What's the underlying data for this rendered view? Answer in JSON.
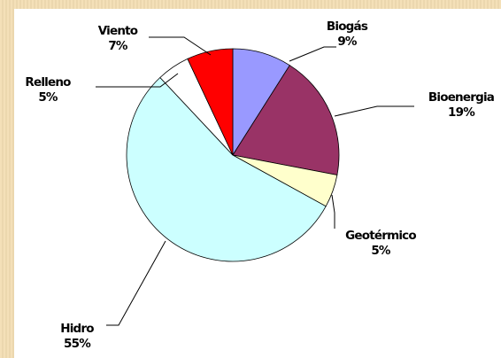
{
  "chart_data": {
    "type": "pie",
    "title": "",
    "slices": [
      {
        "label": "Biogás",
        "value": 9,
        "value_label": "9%",
        "color": "#9999ff"
      },
      {
        "label": "Bioenergia",
        "value": 19,
        "value_label": "19%",
        "color": "#993366"
      },
      {
        "label": "Geotérmico",
        "value": 5,
        "value_label": "5%",
        "color": "#ffffcc"
      },
      {
        "label": "Hidro",
        "value": 55,
        "value_label": "55%",
        "color": "#ccffff"
      },
      {
        "label": "Relleno",
        "value": 5,
        "value_label": "5%",
        "color": "#ffffff"
      },
      {
        "label": "Viento",
        "value": 7,
        "value_label": "7%",
        "color": "#ff0000"
      }
    ],
    "legend": "none",
    "data_labels": "outside-with-leader-lines"
  }
}
